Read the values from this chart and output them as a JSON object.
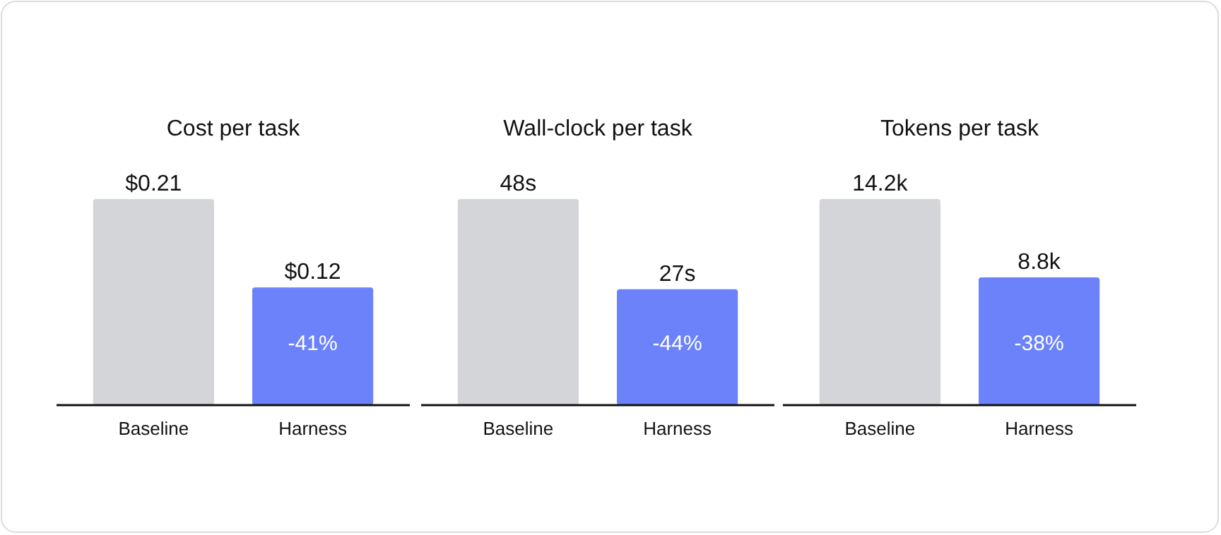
{
  "chart_data": [
    {
      "type": "bar",
      "title": "Cost per task",
      "categories": [
        "Baseline",
        "Harness"
      ],
      "values": [
        0.21,
        0.12
      ],
      "colors": [
        "#d4d5d8",
        "#6b82fb"
      ],
      "value_labels": [
        "$0.21",
        "$0.12"
      ],
      "annotations": [
        "-41%"
      ]
    },
    {
      "type": "bar",
      "title": "Wall-clock per task",
      "categories": [
        "Baseline",
        "Harness"
      ],
      "values": [
        48,
        27
      ],
      "colors": [
        "#d4d5d8",
        "#6b82fb"
      ],
      "value_labels": [
        "48s",
        "27s"
      ],
      "annotations": [
        "-44%"
      ]
    },
    {
      "type": "bar",
      "title": "Tokens per task",
      "categories": [
        "Baseline",
        "Harness"
      ],
      "values": [
        14.2,
        8.8
      ],
      "colors": [
        "#d4d5d8",
        "#6b82fb"
      ],
      "value_labels": [
        "14.2k",
        "8.8k"
      ],
      "annotations": [
        "-38%"
      ]
    }
  ]
}
